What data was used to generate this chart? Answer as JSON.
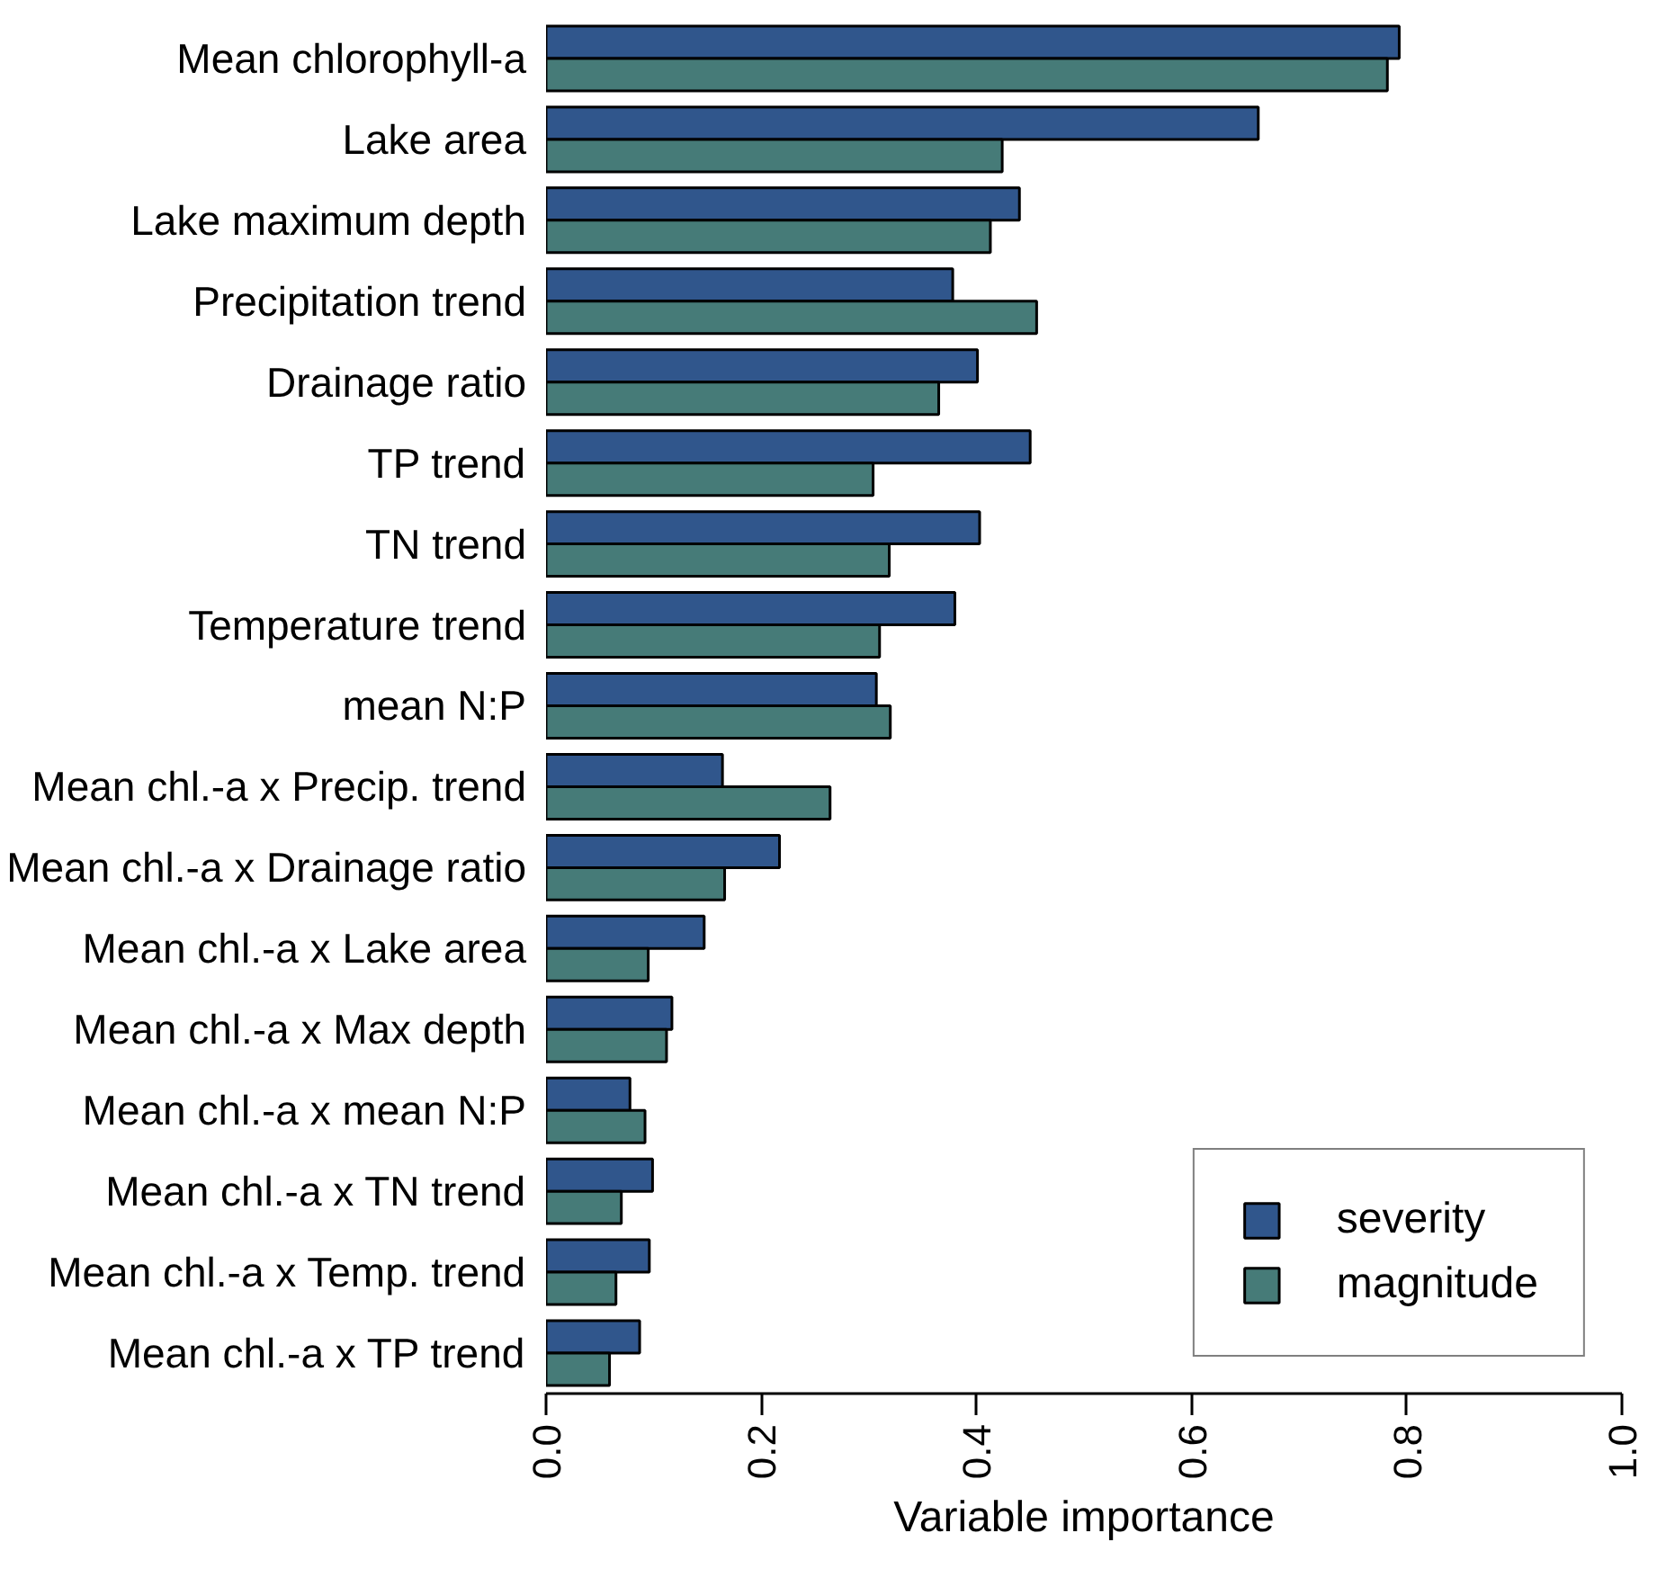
{
  "chart_data": {
    "type": "bar",
    "orientation": "horizontal",
    "xlabel": "Variable importance",
    "categories": [
      "Mean chlorophyll-a",
      "Lake area",
      "Lake maximum depth",
      "Precipitation trend",
      "Drainage ratio",
      "TP trend",
      "TN trend",
      "Temperature trend",
      "mean N:P",
      "Mean chl.-a x Precip. trend",
      "Mean chl.-a x Drainage ratio",
      "Mean chl.-a x Lake area",
      "Mean chl.-a x Max depth",
      "Mean chl.-a x mean N:P",
      "Mean chl.-a x TN trend",
      "Mean chl.-a x Temp. trend",
      "Mean chl.-a x TP trend"
    ],
    "series": [
      {
        "name": "severity",
        "color": "#30568c",
        "values": [
          0.793,
          0.662,
          0.44,
          0.378,
          0.401,
          0.45,
          0.403,
          0.38,
          0.307,
          0.164,
          0.217,
          0.147,
          0.117,
          0.078,
          0.099,
          0.096,
          0.087
        ]
      },
      {
        "name": "magnitude",
        "color": "#467b78",
        "values": [
          0.782,
          0.424,
          0.413,
          0.456,
          0.365,
          0.304,
          0.319,
          0.31,
          0.32,
          0.264,
          0.166,
          0.095,
          0.112,
          0.092,
          0.07,
          0.065,
          0.059
        ]
      }
    ],
    "xlim": [
      0,
      1
    ],
    "xticks": [
      {
        "value": 0,
        "label": "0.0"
      },
      {
        "value": 0.2,
        "label": "0.2"
      },
      {
        "value": 0.4,
        "label": "0.4"
      },
      {
        "value": 0.6,
        "label": "0.6"
      },
      {
        "value": 0.8,
        "label": "0.8"
      },
      {
        "value": 1,
        "label": "1.0"
      }
    ],
    "grid": false,
    "legend": "bottom right"
  }
}
